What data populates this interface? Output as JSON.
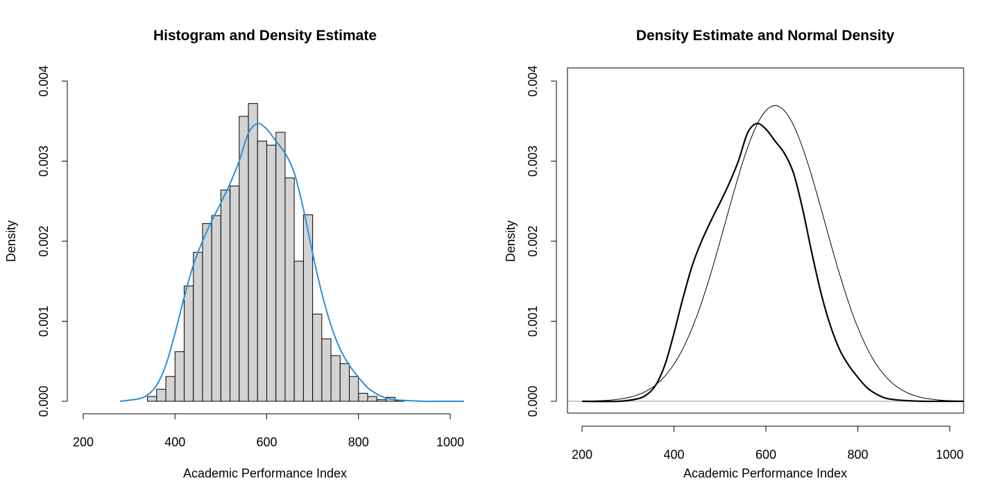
{
  "chart_data": [
    {
      "type": "bar",
      "title": "Histogram and Density Estimate",
      "xlabel": "Academic Performance Index",
      "ylabel": "Density",
      "xlim": [
        200,
        1000
      ],
      "ylim": [
        0,
        0.004
      ],
      "xticks": [
        200,
        400,
        600,
        800,
        1000
      ],
      "yticks": [
        "0.000",
        "0.001",
        "0.002",
        "0.003",
        "0.004"
      ],
      "bar_color": "#d3d3d3",
      "bin_width": 20,
      "bins": [
        {
          "start": 340,
          "value": 6e-05
        },
        {
          "start": 360,
          "value": 0.00015
        },
        {
          "start": 380,
          "value": 0.00031
        },
        {
          "start": 400,
          "value": 0.00062
        },
        {
          "start": 420,
          "value": 0.00144
        },
        {
          "start": 440,
          "value": 0.00186
        },
        {
          "start": 460,
          "value": 0.00222
        },
        {
          "start": 480,
          "value": 0.00232
        },
        {
          "start": 500,
          "value": 0.00264
        },
        {
          "start": 520,
          "value": 0.00269
        },
        {
          "start": 540,
          "value": 0.00356
        },
        {
          "start": 560,
          "value": 0.00372
        },
        {
          "start": 580,
          "value": 0.00325
        },
        {
          "start": 600,
          "value": 0.0032
        },
        {
          "start": 620,
          "value": 0.00336
        },
        {
          "start": 640,
          "value": 0.00279
        },
        {
          "start": 660,
          "value": 0.00175
        },
        {
          "start": 680,
          "value": 0.00233
        },
        {
          "start": 700,
          "value": 0.00109
        },
        {
          "start": 720,
          "value": 0.00078
        },
        {
          "start": 740,
          "value": 0.00057
        },
        {
          "start": 760,
          "value": 0.00047
        },
        {
          "start": 780,
          "value": 0.00031
        },
        {
          "start": 800,
          "value": 0.0001
        },
        {
          "start": 820,
          "value": 6e-05
        },
        {
          "start": 840,
          "value": 2e-05
        },
        {
          "start": 860,
          "value": 5e-05
        },
        {
          "start": 880,
          "value": 1e-05
        }
      ],
      "series": [
        {
          "style": "density",
          "color": "#2b8fd8",
          "x": [
            280,
            320,
            340,
            360,
            380,
            400,
            420,
            440,
            460,
            480,
            500,
            520,
            540,
            560,
            580,
            600,
            620,
            640,
            660,
            680,
            700,
            720,
            740,
            760,
            780,
            800,
            820,
            840,
            860,
            880,
            900,
            940,
            980,
            1030
          ],
          "y": [
            0.0,
            3e-05,
            8e-05,
            0.0002,
            0.00045,
            0.00085,
            0.0013,
            0.0017,
            0.002,
            0.00225,
            0.00248,
            0.00272,
            0.003,
            0.00335,
            0.00347,
            0.0034,
            0.00325,
            0.0031,
            0.00285,
            0.0024,
            0.00185,
            0.00135,
            0.00095,
            0.00065,
            0.00045,
            0.0003,
            0.00017,
            9e-05,
            4e-05,
            2e-05,
            1e-05,
            0.0,
            0.0,
            0.0
          ]
        }
      ]
    },
    {
      "type": "line",
      "title": "Density Estimate and Normal Density",
      "xlabel": "Academic Performance Index",
      "ylabel": "Density",
      "xlim": [
        200,
        1000
      ],
      "ylim": [
        0,
        0.004
      ],
      "xticks": [
        200,
        400,
        600,
        800,
        1000
      ],
      "yticks": [
        "0.000",
        "0.001",
        "0.002",
        "0.003",
        "0.004"
      ],
      "baseline": {
        "y": 0,
        "color": "#bebebe"
      },
      "series": [
        {
          "style": "density",
          "color": "#000000",
          "x": [
            200,
            280,
            320,
            340,
            360,
            380,
            400,
            420,
            440,
            460,
            480,
            500,
            520,
            540,
            560,
            580,
            600,
            620,
            640,
            660,
            680,
            700,
            720,
            740,
            760,
            780,
            800,
            820,
            840,
            860,
            880,
            900,
            940,
            980,
            1030
          ],
          "y": [
            0.0,
            0.0,
            3e-05,
            8e-05,
            0.0002,
            0.00045,
            0.00085,
            0.0013,
            0.0017,
            0.002,
            0.00225,
            0.00248,
            0.00272,
            0.003,
            0.00335,
            0.00347,
            0.0034,
            0.00325,
            0.0031,
            0.00285,
            0.0024,
            0.00185,
            0.00135,
            0.00095,
            0.00065,
            0.00045,
            0.0003,
            0.00017,
            9e-05,
            4e-05,
            2e-05,
            1e-05,
            0.0,
            0.0,
            0.0
          ]
        },
        {
          "style": "normal",
          "color": "#000000",
          "mean": 620,
          "sd": 108
        }
      ]
    }
  ]
}
